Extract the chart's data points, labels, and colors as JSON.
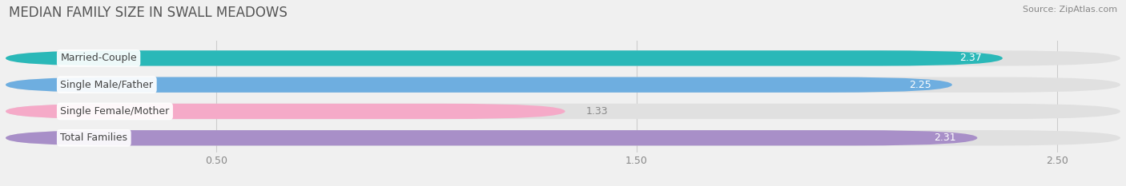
{
  "title": "MEDIAN FAMILY SIZE IN SWALL MEADOWS",
  "source": "Source: ZipAtlas.com",
  "categories": [
    "Married-Couple",
    "Single Male/Father",
    "Single Female/Mother",
    "Total Families"
  ],
  "values": [
    2.37,
    2.25,
    1.33,
    2.31
  ],
  "bar_colors": [
    "#2ab8b8",
    "#6eaee0",
    "#f5aac8",
    "#a88fc8"
  ],
  "background_color": "#f0f0f0",
  "bar_background_color": "#e0e0e0",
  "label_text_color": "#444444",
  "value_text_color": "#ffffff",
  "outside_value_text_color": "#888888",
  "title_color": "#555555",
  "source_color": "#888888",
  "grid_color": "#cccccc",
  "xlim": [
    0,
    2.65
  ],
  "xticks": [
    0.5,
    1.5,
    2.5
  ],
  "title_fontsize": 12,
  "source_fontsize": 8,
  "bar_label_fontsize": 9,
  "value_fontsize": 9,
  "tick_fontsize": 9
}
